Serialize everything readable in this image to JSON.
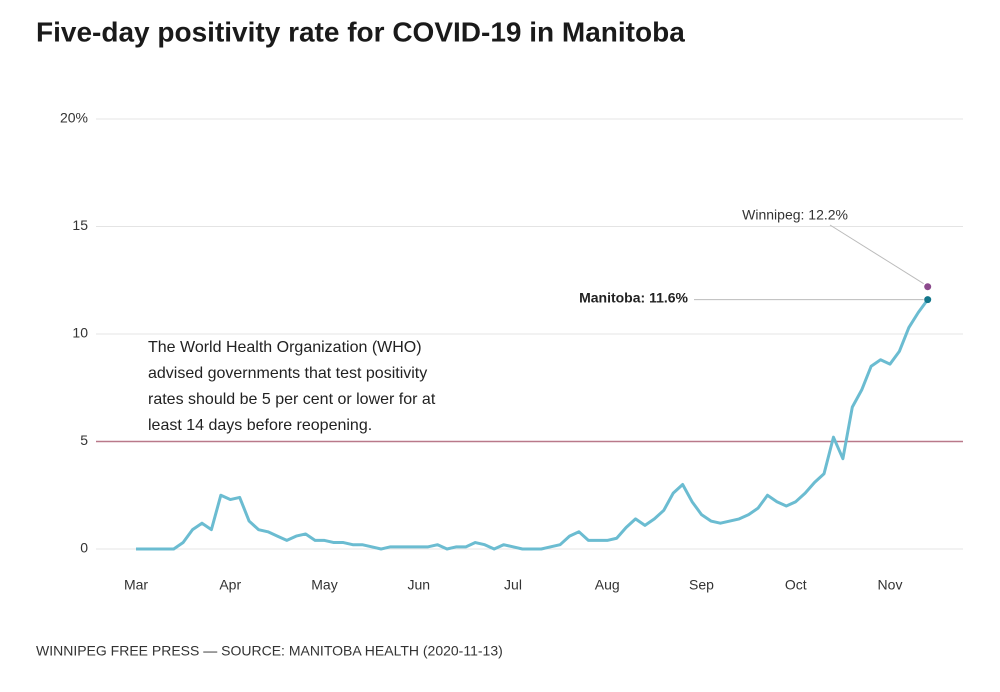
{
  "chart_data": {
    "type": "line",
    "title": "Five-day positivity rate for COVID-19 in Manitoba",
    "source": "WINNIPEG FREE PRESS — SOURCE: MANITOBA HEALTH (2020-11-13)",
    "categories": [
      "Mar",
      null,
      null,
      null,
      null,
      null,
      null,
      null,
      null,
      null,
      "Apr",
      null,
      null,
      null,
      null,
      null,
      null,
      null,
      null,
      null,
      "May",
      null,
      null,
      null,
      null,
      null,
      null,
      null,
      null,
      null,
      "Jun",
      null,
      null,
      null,
      null,
      null,
      null,
      null,
      null,
      null,
      "Jul",
      null,
      null,
      null,
      null,
      null,
      null,
      null,
      null,
      null,
      "Aug",
      null,
      null,
      null,
      null,
      null,
      null,
      null,
      null,
      null,
      "Sep",
      null,
      null,
      null,
      null,
      null,
      null,
      null,
      null,
      null,
      "Oct",
      null,
      null,
      null,
      null,
      null,
      null,
      null,
      null,
      null,
      "Nov",
      null,
      null,
      null,
      null
    ],
    "series": [
      {
        "name": "Manitoba",
        "color": "#6bbcd1",
        "values": [
          0,
          0,
          0,
          0,
          0,
          0.3,
          0.9,
          1.2,
          0.9,
          2.5,
          2.3,
          2.4,
          1.3,
          0.9,
          0.8,
          0.6,
          0.4,
          0.6,
          0.7,
          0.4,
          0.4,
          0.3,
          0.3,
          0.2,
          0.2,
          0.1,
          0,
          0.1,
          0.1,
          0.1,
          0.1,
          0.1,
          0.2,
          0,
          0.1,
          0.1,
          0.3,
          0.2,
          0,
          0.2,
          0.1,
          0,
          0,
          0,
          0.1,
          0.2,
          0.6,
          0.8,
          0.4,
          0.4,
          0.4,
          0.5,
          1.0,
          1.4,
          1.1,
          1.4,
          1.8,
          2.6,
          3.0,
          2.2,
          1.6,
          1.3,
          1.2,
          1.3,
          1.4,
          1.6,
          1.9,
          2.5,
          2.2,
          2.0,
          2.2,
          2.6,
          3.1,
          3.5,
          5.2,
          4.2,
          6.6,
          7.4,
          8.5,
          8.8,
          8.6,
          9.2,
          10.3,
          11.0,
          11.6
        ]
      }
    ],
    "points": [
      {
        "label": "Winnipeg: 12.2%",
        "value": 12.2,
        "color": "#8b4a8c"
      },
      {
        "label": "Manitoba: 11.6%",
        "value": 11.6,
        "color": "#13768a"
      }
    ],
    "reference_line": {
      "value": 5,
      "color": "#b9798a",
      "note": [
        "The World Health Organization (WHO)",
        "advised governments that test positivity",
        "rates should be 5 per cent or lower for at",
        "least 14 days before reopening."
      ]
    },
    "ylim": [
      0,
      20
    ],
    "yticks": [
      0,
      5,
      10,
      15,
      {
        "value": 20,
        "label": "20%"
      }
    ],
    "grid": true
  }
}
